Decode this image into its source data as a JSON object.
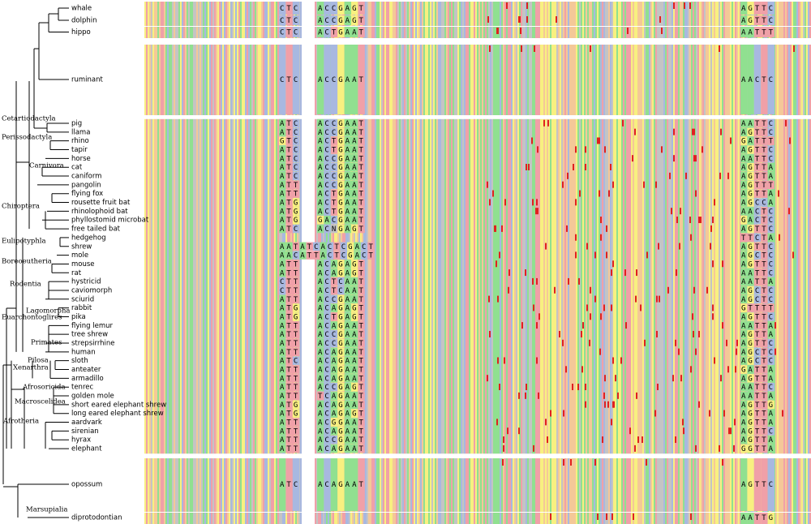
{
  "taxa": [
    {
      "name": "whale",
      "a": "CTC",
      "b": "ACCGAGT",
      "c": "AGTTC"
    },
    {
      "name": "dolphin",
      "a": "CTC",
      "b": "ACCGAGT",
      "c": "AGTTC"
    },
    {
      "name": "hippo",
      "a": "CTC",
      "b": "ACTGAAT",
      "c": "AATTT"
    },
    {
      "name": "ruminant",
      "a": "CTC",
      "b": "ACCGAAT",
      "c": "AACTC"
    },
    {
      "name": "pig",
      "a": "ATC",
      "b": "ACCGAAT",
      "c": "AATTC"
    },
    {
      "name": "llama",
      "a": "ATC",
      "b": "ACCGAAT",
      "c": "AGTTC"
    },
    {
      "name": "rhino",
      "a": "GTC",
      "b": "ACTGAAT",
      "c": "GATTT"
    },
    {
      "name": "tapir",
      "a": "ATC",
      "b": "ACTGAAT",
      "c": "AGTTC"
    },
    {
      "name": "horse",
      "a": "ATC",
      "b": "ACCGAAT",
      "c": "AATTC"
    },
    {
      "name": "cat",
      "a": "ATC",
      "b": "ACCGAAT",
      "c": "AGTTA"
    },
    {
      "name": "caniform",
      "a": "ATC",
      "b": "ACCGAAT",
      "c": "AGTTA"
    },
    {
      "name": "pangolin",
      "a": "ATT",
      "b": "ACCGAAT",
      "c": "AGTTT"
    },
    {
      "name": "flying fox",
      "a": "ATT",
      "b": "ACTGAAT",
      "c": "AGTTA"
    },
    {
      "name": "rousette fruit bat",
      "a": "ATG",
      "b": "ACTGAAT",
      "c": "AGCCA"
    },
    {
      "name": "rhinolophoid bat",
      "a": "ATG",
      "b": "ACTGAAT",
      "c": "AACTC"
    },
    {
      "name": "phyllostomid microbat",
      "a": "ATG",
      "b": "GACGAAT",
      "c": "GACTC"
    },
    {
      "name": "free tailed bat",
      "a": "ATC",
      "b": "ACNGAGT",
      "c": "AGTTC"
    },
    {
      "name": "hedgehog",
      "c": "TTCTA"
    },
    {
      "name": "shrew",
      "ab": "AATATCACTCGACT",
      "c": "AGTTC"
    },
    {
      "name": "mole",
      "ab": "AACATTACTCGACT",
      "c": "AGCTC"
    },
    {
      "name": "mouse",
      "a": "ATT",
      "b": "ACAGAGT",
      "c": "AGTTC"
    },
    {
      "name": "rat",
      "a": "ATT",
      "b": "ACAGAGT",
      "c": "AATTC"
    },
    {
      "name": "hystricid",
      "a": "CTT",
      "b": "ACTCAAT",
      "c": "AATTA"
    },
    {
      "name": "caviomorph",
      "a": "CTT",
      "b": "ACTCAAT",
      "c": "AGCTC"
    },
    {
      "name": "sciurid",
      "a": "ATT",
      "b": "ACCGAAT",
      "c": "AGCTC"
    },
    {
      "name": "rabbit",
      "a": "ATG",
      "b": "ACAGAGT",
      "c": "GTTTT"
    },
    {
      "name": "pika",
      "a": "ATG",
      "b": "ACTGAGT",
      "c": "AGTTC"
    },
    {
      "name": "flying lemur",
      "a": "ATT",
      "b": "ACAGAAT",
      "c": "AATTA"
    },
    {
      "name": "tree shrew",
      "a": "ATT",
      "b": "ACCGAAT",
      "c": "AGTTA"
    },
    {
      "name": "strepsirrhine",
      "a": "ATT",
      "b": "ACCGAAT",
      "c": "AGTTC"
    },
    {
      "name": "human",
      "a": "ATT",
      "b": "ACAGAAT",
      "c": "AGCTC"
    },
    {
      "name": "sloth",
      "a": "ATC",
      "b": "ACAGAAT",
      "c": "AGCTC"
    },
    {
      "name": "anteater",
      "a": "ATT",
      "b": "ACAGAAT",
      "c": "GATTA"
    },
    {
      "name": "armadillo",
      "a": "ATT",
      "b": "ACAGAAT",
      "c": "AGTTA"
    },
    {
      "name": "tenrec",
      "a": "ATT",
      "b": "ACCGAGT",
      "c": "AATTC"
    },
    {
      "name": "golden mole",
      "a": "ATT",
      "b": "TCAGAAT",
      "c": "AATTA"
    },
    {
      "name": "short eared elephant shrew",
      "a": "ATG",
      "b": "ACAGAAT",
      "c": "AGTTG"
    },
    {
      "name": "long eared elephant shrew",
      "a": "ATG",
      "b": "ACAGAGT",
      "c": "AGTTA"
    },
    {
      "name": "aardvark",
      "a": "ATT",
      "b": "ACGGAAT",
      "c": "AGTTA"
    },
    {
      "name": "sirenian",
      "a": "ATT",
      "b": "ACAGAAT",
      "c": "AGTTC"
    },
    {
      "name": "hyrax",
      "a": "ATT",
      "b": "ACCGAAT",
      "c": "AGTTA"
    },
    {
      "name": "elephant",
      "a": "ATT",
      "b": "ACAGAAT",
      "c": "GGTTA"
    },
    {
      "name": "opossum",
      "a": "ATC",
      "b": "ACAGAAT",
      "c": "AGTTC"
    },
    {
      "name": "diprotodontian",
      "c": "AATTG"
    }
  ],
  "clades": [
    "Cetartiodactyla",
    "Perissodactyla",
    "Carnivora",
    "Chiroptera",
    "Eulipotyphla",
    "Boreoeutheria",
    "Rodentia",
    "Lagomorpha",
    "Euarchontoglires",
    "Primates",
    "Pilosa",
    "Xenarthra",
    "Afrosoricida",
    "Macroscelidea",
    "Afrotheria",
    "Marsupialia"
  ]
}
